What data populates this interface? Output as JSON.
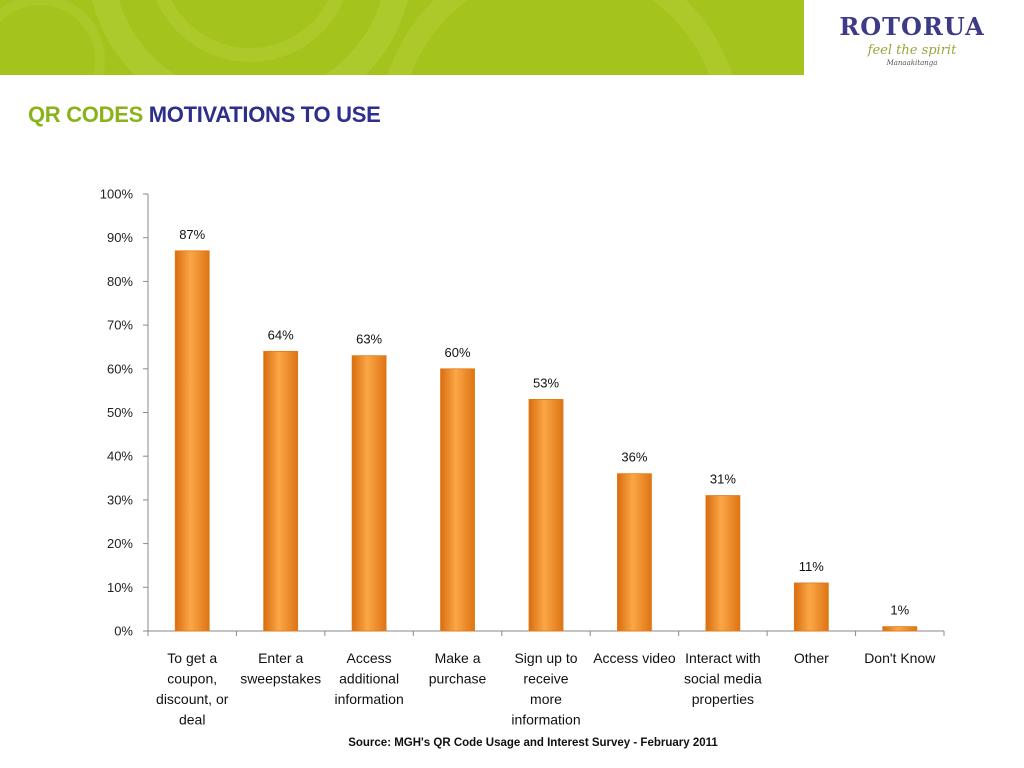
{
  "slide": {
    "title_prefix": "QR CODES",
    "title_suffix": "MOTIVATIONS TO USE",
    "source": "Source: MGH's QR Code Usage and Interest Survey - February 2011"
  },
  "logo": {
    "wordmark": "ROTORUA",
    "tagline": "feel the spirit",
    "subtext": "Manaakitanga"
  },
  "colors": {
    "banner": "#a4c31d",
    "title_accent": "#8ab21a",
    "title_main": "#2e2f8c",
    "bar": "#f28c28"
  },
  "chart_data": {
    "type": "bar",
    "title": "",
    "xlabel": "",
    "ylabel": "",
    "ylim": [
      0,
      100
    ],
    "y_ticks": [
      0,
      10,
      20,
      30,
      40,
      50,
      60,
      70,
      80,
      90,
      100
    ],
    "tick_suffix": "%",
    "grid": false,
    "categories": [
      [
        "To get a",
        "coupon,",
        "discount, or",
        "deal"
      ],
      [
        "Enter a",
        "sweepstakes"
      ],
      [
        "Access",
        "additional",
        "information"
      ],
      [
        "Make a",
        "purchase"
      ],
      [
        "Sign up to",
        "receive",
        "more",
        "information"
      ],
      [
        "Access video"
      ],
      [
        "Interact with",
        "social media",
        "properties"
      ],
      [
        "Other"
      ],
      [
        "Don't Know"
      ]
    ],
    "values": [
      87,
      64,
      63,
      60,
      53,
      36,
      31,
      11,
      1
    ],
    "data_labels": [
      "87%",
      "64%",
      "63%",
      "60%",
      "53%",
      "36%",
      "31%",
      "11%",
      "1%"
    ]
  }
}
